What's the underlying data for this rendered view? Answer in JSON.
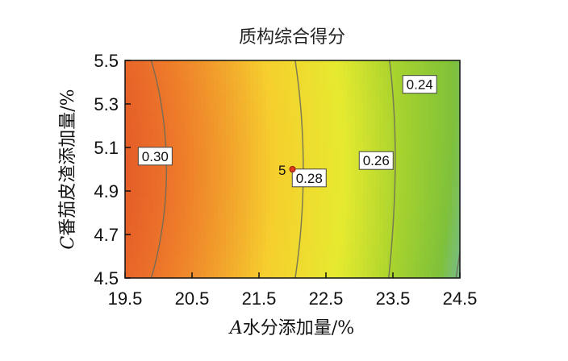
{
  "chart_data": {
    "type": "contour",
    "title": "质构综合得分",
    "xlabel_italic": "A",
    "xlabel_rest": "水分添加量/%",
    "ylabel_italic": "C",
    "ylabel_rest": "番茄皮渣添加量/%",
    "x_ticks": [
      "19.5",
      "20.5",
      "21.5",
      "22.5",
      "23.5",
      "24.5"
    ],
    "y_ticks": [
      "4.5",
      "4.7",
      "4.9",
      "5.1",
      "5.3",
      "5.5"
    ],
    "xlim": [
      19.5,
      24.5
    ],
    "ylim": [
      4.5,
      5.5
    ],
    "contour_levels": [
      {
        "label": "0.30",
        "value": 0.3,
        "label_at": [
          19.95,
          5.06
        ]
      },
      {
        "label": "0.28",
        "value": 0.28,
        "label_at": [
          22.25,
          4.96
        ]
      },
      {
        "label": "0.26",
        "value": 0.26,
        "label_at": [
          23.25,
          5.04
        ]
      },
      {
        "label": "0.24",
        "value": 0.24,
        "label_at": [
          23.9,
          5.39
        ]
      }
    ],
    "design_point": {
      "label": "5",
      "x": 22.0,
      "y": 5.0
    },
    "colormap": [
      "#d62f26",
      "#ee7a2a",
      "#f6cf2e",
      "#e6ea2f",
      "#a6d22e",
      "#7fc13a",
      "#6cb7e0"
    ]
  }
}
